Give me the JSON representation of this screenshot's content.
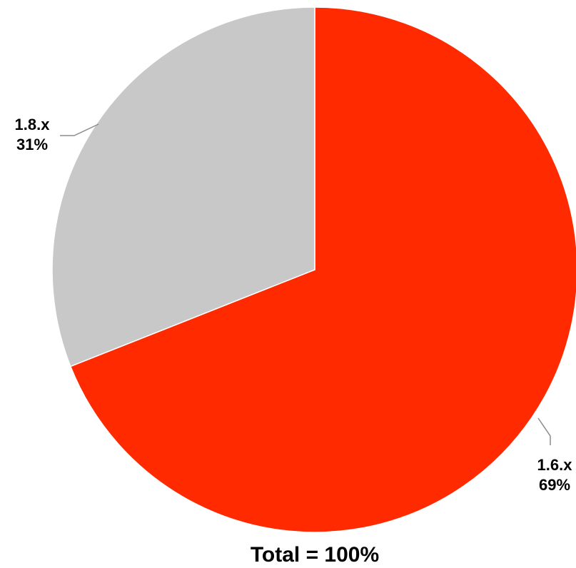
{
  "chart_data": {
    "type": "pie",
    "slices": [
      {
        "label": "1.6.x",
        "value": 69,
        "value_label": "69%",
        "color": "#FF2A00"
      },
      {
        "label": "1.8.x",
        "value": 31,
        "value_label": "31%",
        "color": "#C8C8C8"
      }
    ],
    "total_label": "Total = 100%",
    "start": "12 o'clock",
    "direction": "clockwise",
    "leader_line_color": "#8C8C8C",
    "slice_border_color": "#FFFFFF"
  }
}
